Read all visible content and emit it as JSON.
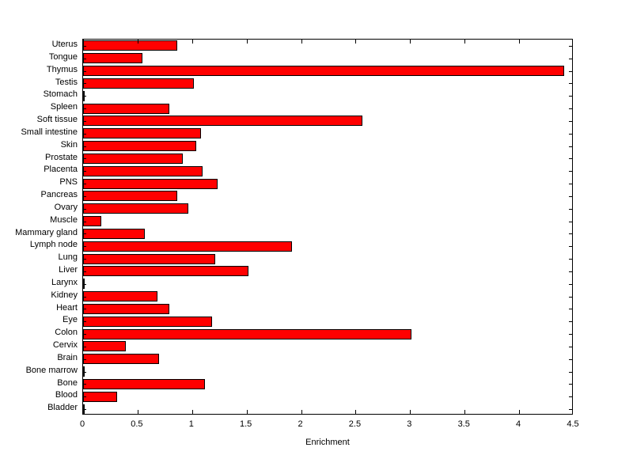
{
  "chart_data": {
    "type": "bar",
    "orientation": "horizontal",
    "title": "",
    "xlabel": "Enrichment",
    "ylabel": "",
    "xlim": [
      0,
      4.5
    ],
    "xticks": [
      0,
      0.5,
      1,
      1.5,
      2,
      2.5,
      3,
      3.5,
      4,
      4.5
    ],
    "xtick_labels": [
      "0",
      "0.5",
      "1",
      "1.5",
      "2",
      "2.5",
      "3",
      "3.5",
      "4",
      "4.5"
    ],
    "grid": false,
    "legend": "none",
    "bar_color": "#FF0000",
    "bar_edge_color": "#000000",
    "categories": [
      "Uterus",
      "Tongue",
      "Thymus",
      "Testis",
      "Stomach",
      "Spleen",
      "Soft tissue",
      "Small intestine",
      "Skin",
      "Prostate",
      "Placenta",
      "PNS",
      "Pancreas",
      "Ovary",
      "Muscle",
      "Mammary gland",
      "Lymph node",
      "Lung",
      "Liver",
      "Larynx",
      "Kidney",
      "Heart",
      "Eye",
      "Colon",
      "Cervix",
      "Brain",
      "Bone marrow",
      "Bone",
      "Blood",
      "Bladder"
    ],
    "values": [
      0.85,
      0.53,
      4.4,
      1.0,
      0,
      0.78,
      2.55,
      1.07,
      1.02,
      0.9,
      1.08,
      1.22,
      0.85,
      0.95,
      0.15,
      0.55,
      1.9,
      1.2,
      1.5,
      0,
      0.67,
      0.78,
      1.17,
      3.0,
      0.38,
      0.68,
      0,
      1.1,
      0.3,
      0
    ]
  }
}
